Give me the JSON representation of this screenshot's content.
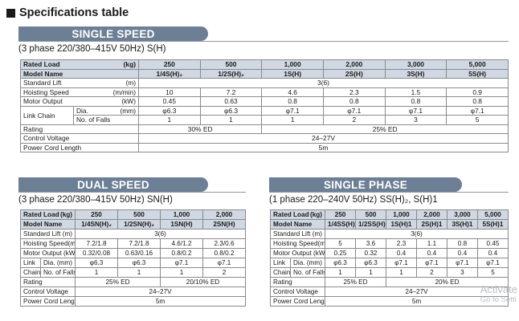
{
  "page_title": "Specifications table",
  "single_speed": {
    "banner": "SINGLE SPEED",
    "subtitle": "(3 phase 220/380–415V 50Hz) S(H)",
    "rated_load_label": "Rated Load",
    "rated_load_unit": "(kg)",
    "model_name_label": "Model Name",
    "loads": [
      "250",
      "500",
      "1,000",
      "2,000",
      "3,000",
      "5,000"
    ],
    "models": [
      "1/4S(H)₂",
      "1/2S(H)₂",
      "1S(H)",
      "2S(H)",
      "3S(H)",
      "5S(H)"
    ],
    "standard_lift_label": "Standard Lift",
    "standard_lift_unit": "(m)",
    "standard_lift_value": "3(6)",
    "hoisting_speed_label": "Hoisting Speed",
    "hoisting_speed_unit": "(m/min)",
    "hoisting_speed": [
      "10",
      "7.2",
      "4.6",
      "2.3",
      "1.5",
      "0.9"
    ],
    "motor_output_label": "Motor Output",
    "motor_output_unit": "(kW)",
    "motor_output": [
      "0.45",
      "0.63",
      "0.8",
      "0.8",
      "0.8",
      "0.8"
    ],
    "link_chain_label": "Link Chain",
    "dia_label": "Dia.",
    "dia_unit": "(mm)",
    "dia": [
      "φ6.3",
      "φ6.3",
      "φ7.1",
      "φ7.1",
      "φ7.1",
      "φ7.1"
    ],
    "falls_label": "No. of Falls",
    "falls": [
      "1",
      "1",
      "1",
      "2",
      "3",
      "5"
    ],
    "rating_label": "Rating",
    "rating_a": "30% ED",
    "rating_b": "25% ED",
    "control_voltage_label": "Control Voltage",
    "control_voltage": "24–27V",
    "power_cord_label": "Power Cord Length",
    "power_cord": "5m"
  },
  "dual_speed": {
    "banner": "DUAL SPEED",
    "subtitle": "(3 phase 220/380–415V 50Hz) SN(H)",
    "rated_load_label": "Rated Load",
    "rated_load_unit": "(kg)",
    "model_name_label": "Model Name",
    "loads": [
      "250",
      "500",
      "1,000",
      "2,000"
    ],
    "models": [
      "1/4SN(H)₂",
      "1/2SN(H)₂",
      "1SN(H)",
      "2SN(H)"
    ],
    "standard_lift_label": "Standard Lift",
    "standard_lift_unit": "(m)",
    "standard_lift_value": "3(6)",
    "hoisting_speed_label": "Hoisting Speed",
    "hoisting_speed_unit": "(m/min)",
    "hoisting_speed": [
      "7.2/1.8",
      "7.2/1.8",
      "4.6/1.2",
      "2.3/0.6"
    ],
    "motor_output_label": "Motor Output (kW)",
    "motor_output": [
      "0.32/0.08",
      "0.63/0.16",
      "0.8/0.2",
      "0.8/0.2"
    ],
    "link_label": "Link",
    "chain_label": "Chain",
    "dia_label": "Dia. (mm)",
    "dia": [
      "φ6.3",
      "φ6.3",
      "φ7.1",
      "φ7.1"
    ],
    "falls_label": "No. of Falls",
    "falls": [
      "1",
      "1",
      "1",
      "2"
    ],
    "rating_label": "Rating",
    "rating_a": "25% ED",
    "rating_b": "20/10% ED",
    "control_voltage_label": "Control Voltage",
    "control_voltage": "24–27V",
    "power_cord_label": "Power Cord Length",
    "power_cord": "5m"
  },
  "single_phase": {
    "banner": "SINGLE PHASE",
    "subtitle": "(1 phase 220–240V 50Hz) SS(H)₂, S(H)1",
    "rated_load_label": "Rated Load",
    "rated_load_unit": "(kg)",
    "model_name_label": "Model Name",
    "loads": [
      "250",
      "500",
      "1,000",
      "2,000",
      "3,000",
      "5,000"
    ],
    "models": [
      "1/4SS(H)₂",
      "1/2SS(H)₂",
      "1S(H)1",
      "2S(H)1",
      "3S(H)1",
      "5S(H)1"
    ],
    "standard_lift_label": "Standard Lift",
    "standard_lift_unit": "(m)",
    "standard_lift_value": "3(6)",
    "hoisting_speed_label": "Hoisting Speed",
    "hoisting_speed_unit": "(m/min)",
    "hoisting_speed": [
      "5",
      "3.6",
      "2.3",
      "1.1",
      "0.8",
      "0.45"
    ],
    "motor_output_label": "Motor Output (kW)",
    "motor_output": [
      "0.25",
      "0.32",
      "0.4",
      "0.4",
      "0.4",
      "0.4"
    ],
    "link_label": "Link",
    "chain_label": "Chain",
    "dia_label": "Dia. (mm)",
    "dia": [
      "φ6.3",
      "φ6.3",
      "φ7.1",
      "φ7.1",
      "φ7.1",
      "φ7.1"
    ],
    "falls_label": "No. of Falls",
    "falls": [
      "1",
      "1",
      "1",
      "2",
      "3",
      "5"
    ],
    "rating_label": "Rating",
    "rating_a": "25% ED",
    "rating_b": "20% ED",
    "control_voltage_label": "Control Voltage",
    "control_voltage": "24–27V",
    "power_cord_label": "Power Cord Length",
    "power_cord": "5m"
  },
  "overlay": {
    "line1": "Activate",
    "line2": "Go to Setti"
  }
}
